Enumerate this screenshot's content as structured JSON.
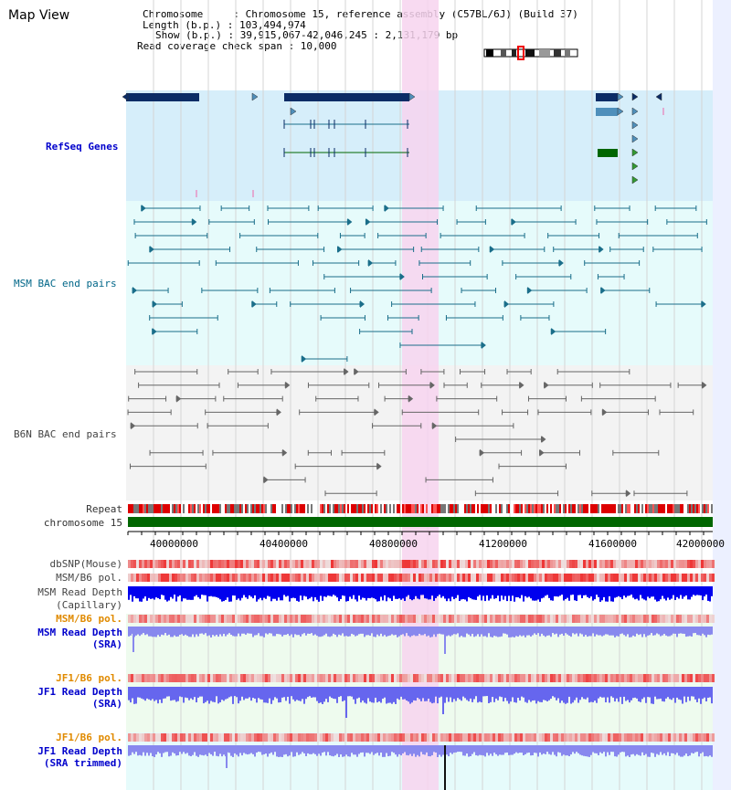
{
  "title": "Map View",
  "info": {
    "chromosome": "Chromosome     : Chromosome 15, reference assembly (C57BL/6J) (Build 37)",
    "length": "Length (b.p.) : 103,494,974",
    "show": "Show (b.p.) : 39,915,067-42,046,245 : 2,131,179 bp",
    "coverage": "Read coverage check span : 10,000"
  },
  "tracks": {
    "refseq": "RefSeq Genes",
    "msm_bac": "MSM BAC end pairs",
    "b6n_bac": "B6N BAC end pairs",
    "repeat": "Repeat",
    "chromosome": "chromosome 15",
    "dbsnp": "dbSNP(Mouse)",
    "msm_b6_pol_1": "MSM/B6 pol.",
    "msm_depth_cap_1": "MSM Read Depth",
    "msm_depth_cap_2": "(Capillary)",
    "msm_b6_pol_2": "MSM/B6 pol.",
    "msm_depth_sra_1": "MSM Read Depth",
    "msm_depth_sra_2": "(SRA)",
    "jf1_pol_1": "JF1/B6 pol.",
    "jf1_depth_sra_1": "JF1 Read Depth",
    "jf1_depth_sra_2": "(SRA)",
    "jf1_pol_2": "JF1/B6 pol.",
    "jf1_depth_trim_1": "JF1 Read Depth",
    "jf1_depth_trim_2": "(SRA trimmed)"
  },
  "axis": {
    "ticks": [
      "40000000",
      "40400000",
      "40800000",
      "41200000",
      "41600000",
      "42000000"
    ]
  },
  "colors": {
    "refseq_bg": "#d6eefa",
    "bac_bg": "#e6fbfb",
    "b6n_bg": "#f3f3f3",
    "highlight": "#f7d4ee",
    "gene_dark": "#0b2c66",
    "gene_light": "#4f8fbb",
    "gene_green": "#006600",
    "msm_line": "#1a6e8a",
    "b6n_line": "#666666",
    "chrom_green": "#006600",
    "depth_blue": "#0000ee",
    "depth_light": "#7777ee"
  }
}
